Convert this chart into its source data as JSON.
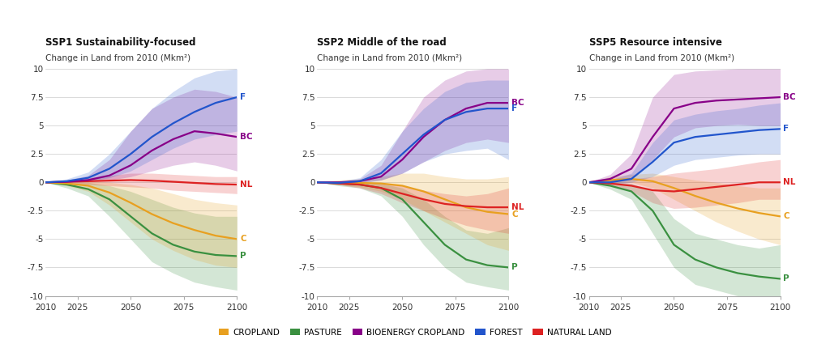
{
  "years": [
    2010,
    2020,
    2030,
    2040,
    2050,
    2060,
    2070,
    2080,
    2090,
    2100
  ],
  "ssp1": {
    "title": "SSP1 Sustainability-focused",
    "subtitle": "Change in Land from 2010 (Mkm²)",
    "cropland": {
      "mean": [
        0,
        -0.1,
        -0.3,
        -0.9,
        -1.8,
        -2.8,
        -3.6,
        -4.2,
        -4.7,
        -5.0
      ],
      "low": [
        0,
        -0.3,
        -0.8,
        -2.0,
        -3.5,
        -5.0,
        -6.0,
        -6.8,
        -7.3,
        -7.5
      ],
      "high": [
        0,
        0.1,
        0.1,
        0.0,
        -0.2,
        -0.5,
        -1.0,
        -1.5,
        -1.8,
        -2.0
      ]
    },
    "pasture": {
      "mean": [
        0,
        -0.2,
        -0.6,
        -1.5,
        -3.0,
        -4.5,
        -5.5,
        -6.1,
        -6.4,
        -6.5
      ],
      "low": [
        0,
        -0.5,
        -1.2,
        -3.0,
        -5.0,
        -7.0,
        -8.0,
        -8.8,
        -9.2,
        -9.5
      ],
      "high": [
        0,
        0.0,
        0.0,
        -0.3,
        -0.8,
        -1.5,
        -2.2,
        -2.7,
        -3.0,
        -3.0
      ]
    },
    "bioenergy": {
      "mean": [
        0,
        0.05,
        0.2,
        0.6,
        1.5,
        2.8,
        3.8,
        4.5,
        4.3,
        4.0
      ],
      "low": [
        0,
        0.0,
        0.05,
        0.2,
        0.5,
        1.0,
        1.5,
        1.8,
        1.5,
        1.0
      ],
      "high": [
        0,
        0.2,
        0.6,
        2.0,
        4.5,
        6.5,
        7.5,
        8.2,
        8.0,
        7.5
      ]
    },
    "forest": {
      "mean": [
        0,
        0.1,
        0.4,
        1.2,
        2.5,
        4.0,
        5.2,
        6.2,
        7.0,
        7.5
      ],
      "low": [
        0,
        0.0,
        0.1,
        0.4,
        1.0,
        2.0,
        3.0,
        3.8,
        4.2,
        4.5
      ],
      "high": [
        0,
        0.3,
        0.9,
        2.5,
        4.5,
        6.5,
        8.0,
        9.2,
        9.8,
        10.0
      ]
    },
    "natural_land": {
      "mean": [
        0,
        0.05,
        0.1,
        0.15,
        0.2,
        0.15,
        0.05,
        -0.05,
        -0.15,
        -0.2
      ],
      "low": [
        0,
        -0.1,
        -0.2,
        -0.3,
        -0.4,
        -0.5,
        -0.7,
        -0.8,
        -0.9,
        -1.0
      ],
      "high": [
        0,
        0.2,
        0.4,
        0.6,
        0.8,
        0.8,
        0.7,
        0.6,
        0.5,
        0.5
      ]
    }
  },
  "ssp2": {
    "title": "SSP2 Middle of the road",
    "subtitle": "Change in Land from 2010 (Mkm²)",
    "cropland": {
      "mean": [
        0,
        0.0,
        -0.05,
        -0.1,
        -0.3,
        -0.8,
        -1.5,
        -2.2,
        -2.6,
        -2.8
      ],
      "low": [
        0,
        -0.2,
        -0.4,
        -0.8,
        -1.5,
        -2.5,
        -3.5,
        -4.5,
        -5.5,
        -6.0
      ],
      "high": [
        0,
        0.2,
        0.3,
        0.5,
        0.8,
        0.8,
        0.5,
        0.3,
        0.3,
        0.5
      ]
    },
    "pasture": {
      "mean": [
        0,
        -0.1,
        -0.2,
        -0.5,
        -1.5,
        -3.5,
        -5.5,
        -6.8,
        -7.3,
        -7.5
      ],
      "low": [
        0,
        -0.3,
        -0.5,
        -1.2,
        -3.0,
        -5.5,
        -7.5,
        -8.8,
        -9.2,
        -9.5
      ],
      "high": [
        0,
        0.0,
        0.0,
        -0.1,
        -0.5,
        -1.5,
        -3.0,
        -4.2,
        -4.5,
        -4.0
      ]
    },
    "bioenergy": {
      "mean": [
        0,
        0.0,
        0.1,
        0.5,
        2.0,
        4.0,
        5.5,
        6.5,
        7.0,
        7.0
      ],
      "low": [
        0,
        -0.05,
        0.0,
        0.2,
        0.8,
        1.8,
        2.8,
        3.5,
        3.8,
        3.5
      ],
      "high": [
        0,
        0.05,
        0.3,
        1.5,
        4.5,
        7.5,
        9.0,
        9.8,
        10.0,
        10.0
      ]
    },
    "forest": {
      "mean": [
        0,
        -0.05,
        0.1,
        0.8,
        2.5,
        4.2,
        5.5,
        6.2,
        6.5,
        6.5
      ],
      "low": [
        0,
        -0.2,
        -0.1,
        0.2,
        0.8,
        1.8,
        2.5,
        2.8,
        3.0,
        2.0
      ],
      "high": [
        0,
        0.1,
        0.4,
        2.0,
        4.5,
        6.5,
        8.0,
        8.8,
        9.0,
        9.0
      ]
    },
    "natural_land": {
      "mean": [
        0,
        -0.1,
        -0.2,
        -0.5,
        -1.0,
        -1.5,
        -1.9,
        -2.1,
        -2.2,
        -2.2
      ],
      "low": [
        0,
        -0.2,
        -0.5,
        -1.0,
        -1.8,
        -2.5,
        -3.2,
        -3.8,
        -4.2,
        -4.5
      ],
      "high": [
        0,
        0.0,
        0.0,
        -0.1,
        -0.3,
        -0.7,
        -1.0,
        -1.2,
        -1.0,
        -0.5
      ]
    }
  },
  "ssp5": {
    "title": "SSP5 Resource intensive",
    "subtitle": "Change in Land from 2010 (Mkm²)",
    "cropland": {
      "mean": [
        0,
        0.2,
        0.3,
        0.1,
        -0.5,
        -1.2,
        -1.8,
        -2.3,
        -2.7,
        -3.0
      ],
      "low": [
        0,
        -0.1,
        0.0,
        -0.5,
        -1.5,
        -2.5,
        -3.5,
        -4.3,
        -5.0,
        -5.5
      ],
      "high": [
        0,
        0.5,
        0.7,
        0.8,
        0.5,
        0.2,
        0.0,
        -0.3,
        -0.5,
        -0.5
      ]
    },
    "pasture": {
      "mean": [
        0,
        -0.3,
        -0.8,
        -2.5,
        -5.5,
        -6.8,
        -7.5,
        -8.0,
        -8.3,
        -8.5
      ],
      "low": [
        0,
        -0.6,
        -1.5,
        -4.5,
        -7.5,
        -9.0,
        -9.5,
        -10.0,
        -10.0,
        -10.0
      ],
      "high": [
        0,
        0.0,
        -0.1,
        -0.8,
        -3.2,
        -4.5,
        -5.0,
        -5.5,
        -5.8,
        -5.5
      ]
    },
    "bioenergy": {
      "mean": [
        0,
        0.3,
        1.2,
        4.0,
        6.5,
        7.0,
        7.2,
        7.3,
        7.4,
        7.5
      ],
      "low": [
        0,
        0.1,
        0.4,
        2.0,
        4.0,
        4.8,
        5.0,
        5.1,
        5.0,
        5.0
      ],
      "high": [
        0,
        0.7,
        2.5,
        7.5,
        9.5,
        9.8,
        9.9,
        10.0,
        10.0,
        10.0
      ]
    },
    "forest": {
      "mean": [
        0,
        0.0,
        0.3,
        1.8,
        3.5,
        4.0,
        4.2,
        4.4,
        4.6,
        4.7
      ],
      "low": [
        0,
        -0.2,
        0.0,
        0.5,
        1.5,
        2.0,
        2.2,
        2.4,
        2.5,
        2.5
      ],
      "high": [
        0,
        0.2,
        0.8,
        3.5,
        5.5,
        6.0,
        6.3,
        6.5,
        6.8,
        7.0
      ]
    },
    "natural_land": {
      "mean": [
        0,
        -0.1,
        -0.3,
        -0.7,
        -0.8,
        -0.6,
        -0.4,
        -0.2,
        0.0,
        0.0
      ],
      "low": [
        0,
        -0.3,
        -0.8,
        -1.8,
        -2.3,
        -2.2,
        -2.0,
        -1.8,
        -1.5,
        -1.5
      ],
      "high": [
        0,
        0.2,
        0.3,
        0.5,
        0.8,
        1.0,
        1.2,
        1.5,
        1.8,
        2.0
      ]
    }
  },
  "colors": {
    "cropland": "#E8A020",
    "pasture": "#3A9040",
    "bioenergy": "#880088",
    "forest": "#2255CC",
    "natural_land": "#DD2222"
  },
  "fill_alphas": {
    "cropland": 0.22,
    "pasture": 0.22,
    "bioenergy": 0.2,
    "forest": 0.2,
    "natural_land": 0.2
  },
  "fill_colors": {
    "cropland": "#E8A020",
    "pasture": "#3A9040",
    "bioenergy": "#880088",
    "forest": "#2255CC",
    "natural_land": "#DD2222"
  },
  "ylim": [
    -10,
    10
  ],
  "yticks": [
    -10,
    -7.5,
    -5,
    -2.5,
    0,
    2.5,
    5,
    7.5,
    10
  ],
  "xticks": [
    2010,
    2025,
    2050,
    2075,
    2100
  ],
  "line_width": 1.6,
  "legend_items": [
    {
      "label": "CROPLAND",
      "color": "#E8A020"
    },
    {
      "label": "PASTURE",
      "color": "#3A9040"
    },
    {
      "label": "BIOENERGY CROPLAND",
      "color": "#880088"
    },
    {
      "label": "FOREST",
      "color": "#2255CC"
    },
    {
      "label": "NATURAL LAND",
      "color": "#DD2222"
    }
  ],
  "label_abbrevs": {
    "cropland": "C",
    "pasture": "P",
    "bioenergy": "BC",
    "forest": "F",
    "natural_land": "NL"
  },
  "draw_order": [
    "pasture",
    "cropland",
    "natural_land",
    "bioenergy",
    "forest"
  ]
}
